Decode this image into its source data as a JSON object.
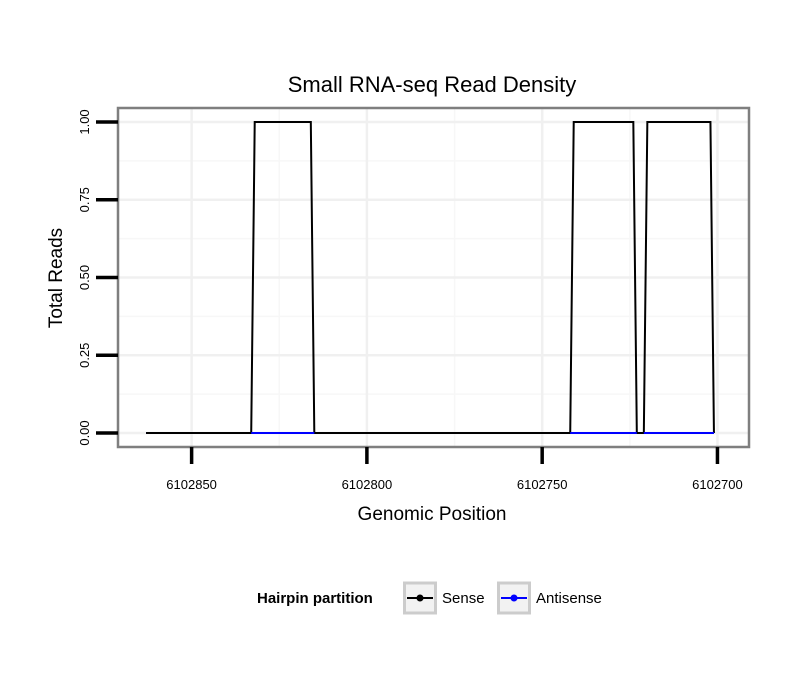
{
  "chart_data": {
    "type": "line",
    "title": "Small RNA-seq Read Density",
    "xlabel": "Genomic Position",
    "ylabel": "Total Reads",
    "x_reversed": true,
    "xlim": [
      6102871,
      6102691
    ],
    "ylim": [
      -0.045,
      1.045
    ],
    "x_ticks": [
      6102850,
      6102800,
      6102750,
      6102700
    ],
    "x_tick_labels": [
      "6102850",
      "6102800",
      "6102750",
      "6102700"
    ],
    "y_ticks": [
      0,
      0.25,
      0.5,
      0.75,
      1
    ],
    "y_tick_labels": [
      "0.00",
      "0.25",
      "0.50",
      "0.75",
      "1.00"
    ],
    "grid": true,
    "legend": {
      "title": "Hairpin partition",
      "placement": "bottom",
      "entries": [
        {
          "name": "Sense",
          "color": "#000000"
        },
        {
          "name": "Antisense",
          "color": "#0000ff"
        }
      ]
    },
    "series": [
      {
        "name": "Sense",
        "color": "#000000",
        "x": [
          6102863,
          6102833,
          6102832,
          6102816,
          6102815,
          6102742,
          6102741,
          6102724,
          6102723,
          6102721,
          6102720,
          6102702,
          6102701
        ],
        "y": [
          0,
          0,
          1,
          1,
          0,
          0,
          1,
          1,
          0,
          0,
          1,
          1,
          0
        ]
      },
      {
        "name": "Antisense",
        "color": "#0000ff",
        "x": [
          6102863,
          6102701
        ],
        "y": [
          0,
          0
        ]
      }
    ]
  }
}
